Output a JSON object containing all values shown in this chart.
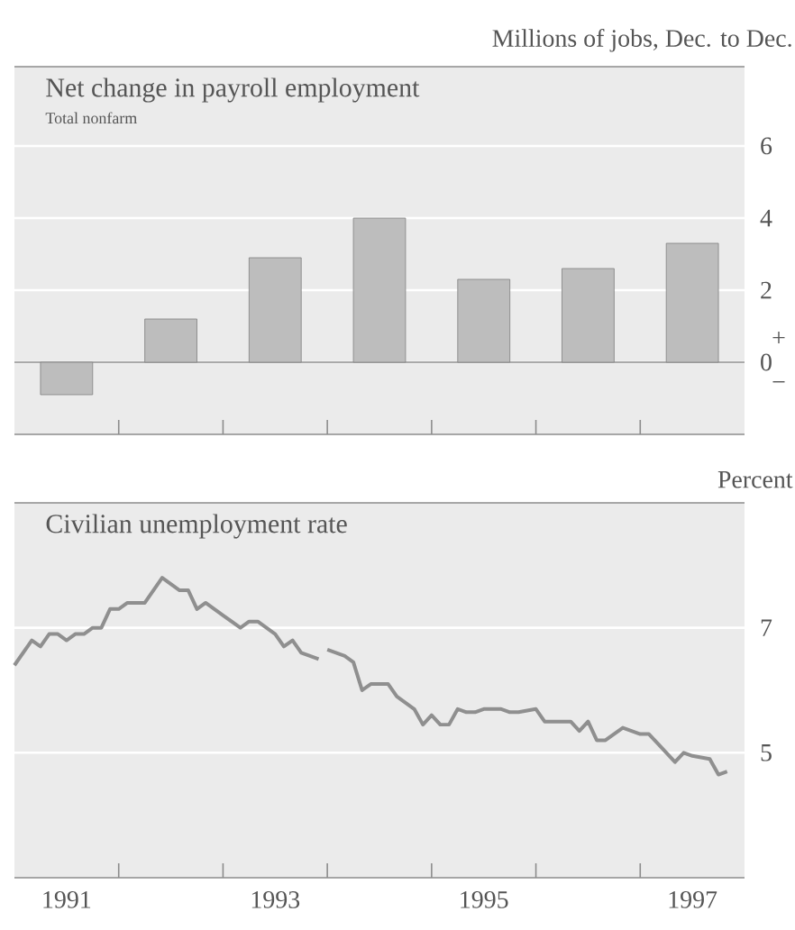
{
  "chart_data": [
    {
      "type": "bar",
      "title": "Net change in payroll employment",
      "subtitle": "Total nonfarm",
      "ylabel": "Millions of jobs, Dec. to Dec.",
      "categories": [
        "1991",
        null,
        "1993",
        null,
        "1995",
        null,
        "1997"
      ],
      "values": [
        -0.9,
        1.2,
        2.9,
        4.0,
        2.3,
        2.6,
        3.3
      ],
      "color": "#bdbdbd",
      "ylim": [
        -2,
        8.2
      ],
      "yticks": [
        0,
        2,
        4,
        6
      ],
      "grid": "y",
      "tick_labels": "y",
      "annotations": [
        "+",
        "−"
      ]
    },
    {
      "type": "line",
      "title": "Civilian unemployment rate",
      "ylabel": "Percent",
      "xlim": [
        "1991-01",
        "1998-01"
      ],
      "ylim": [
        3,
        9
      ],
      "yticks": [
        5,
        7
      ],
      "grid": "y",
      "xticks": [
        {
          "value": "1991-07",
          "label": "1991"
        },
        {
          "value": "1992-01",
          "label": null
        },
        {
          "value": "1993-01",
          "label": null
        },
        {
          "value": "1993-07",
          "label": "1993"
        },
        {
          "value": "1994-01",
          "label": null
        },
        {
          "value": "1995-01",
          "label": null
        },
        {
          "value": "1995-07",
          "label": "1995"
        },
        {
          "value": "1996-01",
          "label": null
        },
        {
          "value": "1997-01",
          "label": null
        },
        {
          "value": "1997-07",
          "label": "1997"
        }
      ],
      "series": [
        {
          "color": "#8f8f8f",
          "x": [
            "1991-01",
            "1991-03",
            "1991-04",
            "1991-05",
            "1991-06",
            "1991-07",
            "1991-08",
            "1991-09",
            "1991-10",
            "1991-11",
            "1991-12",
            "1992-01",
            "1992-02",
            "1992-04",
            "1992-06",
            "1992-08",
            "1992-09",
            "1992-10",
            "1992-11",
            "1992-12",
            "1993-01",
            "1993-03",
            "1993-04",
            "1993-05",
            "1993-07",
            "1993-08",
            "1993-09",
            "1993-10",
            "1993-12"
          ],
          "values": [
            6.4,
            6.8,
            6.7,
            6.9,
            6.9,
            6.8,
            6.9,
            6.9,
            7.0,
            7.0,
            7.3,
            7.3,
            7.4,
            7.4,
            7.8,
            7.6,
            7.6,
            7.3,
            7.4,
            7.3,
            7.2,
            7.0,
            7.1,
            7.1,
            6.9,
            6.7,
            6.8,
            6.6,
            6.5
          ]
        },
        {
          "color": "#8f8f8f",
          "x": [
            "1994-01",
            "1994-02",
            "1994-03",
            "1994-04",
            "1994-05",
            "1994-06",
            "1994-08",
            "1994-09",
            "1994-11",
            "1994-12",
            "1995-01",
            "1995-02",
            "1995-03",
            "1995-04",
            "1995-05",
            "1995-06",
            "1995-07",
            "1995-09",
            "1995-10",
            "1995-11",
            "1996-01",
            "1996-02",
            "1996-04",
            "1996-05",
            "1996-06",
            "1996-07",
            "1996-08",
            "1996-09",
            "1996-11",
            "1997-01",
            "1997-02",
            "1997-03",
            "1997-05",
            "1997-06",
            "1997-07",
            "1997-09",
            "1997-10",
            "1997-11"
          ],
          "values": [
            6.65,
            6.6,
            6.55,
            6.45,
            6.0,
            6.1,
            6.1,
            5.9,
            5.7,
            5.45,
            5.6,
            5.45,
            5.45,
            5.7,
            5.65,
            5.65,
            5.7,
            5.7,
            5.65,
            5.65,
            5.7,
            5.5,
            5.5,
            5.5,
            5.35,
            5.5,
            5.2,
            5.2,
            5.4,
            5.3,
            5.3,
            5.15,
            4.85,
            5.0,
            4.95,
            4.9,
            4.65,
            4.7
          ]
        }
      ]
    }
  ]
}
